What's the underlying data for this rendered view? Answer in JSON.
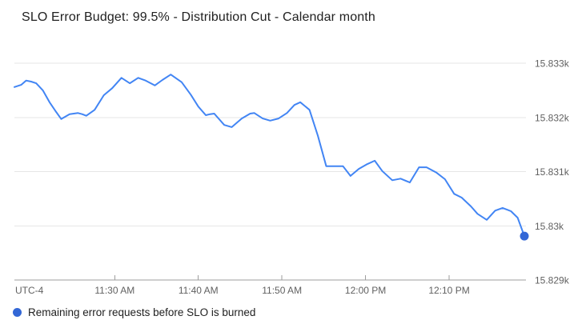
{
  "chart": {
    "title": "SLO Error Budget: 99.5% - Distribution Cut - Calendar month",
    "timezone_label": "UTC-4",
    "legend_items": [
      {
        "label": "Remaining error requests before SLO is burned",
        "color": "#3367d6"
      }
    ]
  },
  "colors": {
    "line": "#4285f4",
    "endpoint_dot": "#3367d6",
    "grid": "#e6e6e6",
    "axis": "#9e9e9e",
    "tick_text": "#616161",
    "title_text": "#212121"
  },
  "chart_data": {
    "type": "line",
    "title": "SLO Error Budget: 99.5% - Distribution Cut - Calendar month",
    "xlabel": "",
    "ylabel": "",
    "grid": true,
    "legend_position": "bottom-left",
    "x_axis_note": "UTC-4",
    "x_range_minutes": [
      678,
      739
    ],
    "x_ticks": [
      {
        "label": "11:30 AM",
        "t": 690
      },
      {
        "label": "11:40 AM",
        "t": 700
      },
      {
        "label": "11:50 AM",
        "t": 710
      },
      {
        "label": "12:00 PM",
        "t": 720
      },
      {
        "label": "12:10 PM",
        "t": 730
      }
    ],
    "y_ticks": [
      {
        "label": "15.833k",
        "value": 15833
      },
      {
        "label": "15.832k",
        "value": 15832
      },
      {
        "label": "15.831k",
        "value": 15831
      },
      {
        "label": "15.83k",
        "value": 15830
      },
      {
        "label": "15.829k",
        "value": 15829
      }
    ],
    "ylim": [
      15829,
      15833
    ],
    "series": [
      {
        "name": "Remaining error requests before SLO is burned",
        "color": "#4285f4",
        "endpoint_color": "#3367d6",
        "points": [
          [
            678.0,
            15832.56
          ],
          [
            678.8,
            15832.6
          ],
          [
            679.4,
            15832.68
          ],
          [
            680.0,
            15832.66
          ],
          [
            680.6,
            15832.63
          ],
          [
            681.4,
            15832.5
          ],
          [
            682.2,
            15832.28
          ],
          [
            683.0,
            15832.1
          ],
          [
            683.6,
            15831.97
          ],
          [
            684.6,
            15832.06
          ],
          [
            685.6,
            15832.08
          ],
          [
            686.1,
            15832.06
          ],
          [
            686.6,
            15832.03
          ],
          [
            687.6,
            15832.14
          ],
          [
            688.7,
            15832.41
          ],
          [
            689.7,
            15832.54
          ],
          [
            690.8,
            15832.73
          ],
          [
            691.8,
            15832.63
          ],
          [
            692.8,
            15832.73
          ],
          [
            693.7,
            15832.68
          ],
          [
            694.8,
            15832.59
          ],
          [
            695.7,
            15832.69
          ],
          [
            696.7,
            15832.79
          ],
          [
            698.0,
            15832.65
          ],
          [
            699.1,
            15832.42
          ],
          [
            700.0,
            15832.2
          ],
          [
            700.9,
            15832.04
          ],
          [
            701.4,
            15832.06
          ],
          [
            701.9,
            15832.07
          ],
          [
            703.1,
            15831.86
          ],
          [
            704.0,
            15831.82
          ],
          [
            705.2,
            15831.98
          ],
          [
            706.2,
            15832.07
          ],
          [
            706.7,
            15832.08
          ],
          [
            707.7,
            15831.98
          ],
          [
            708.6,
            15831.94
          ],
          [
            709.6,
            15831.98
          ],
          [
            710.6,
            15832.08
          ],
          [
            711.5,
            15832.23
          ],
          [
            712.2,
            15832.28
          ],
          [
            713.3,
            15832.14
          ],
          [
            714.3,
            15831.66
          ],
          [
            715.3,
            15831.1
          ],
          [
            716.3,
            15831.1
          ],
          [
            717.3,
            15831.1
          ],
          [
            718.2,
            15830.92
          ],
          [
            719.2,
            15831.05
          ],
          [
            720.1,
            15831.13
          ],
          [
            721.1,
            15831.2
          ],
          [
            722.0,
            15831.01
          ],
          [
            723.2,
            15830.84
          ],
          [
            724.2,
            15830.87
          ],
          [
            725.3,
            15830.8
          ],
          [
            726.4,
            15831.08
          ],
          [
            727.3,
            15831.08
          ],
          [
            728.5,
            15830.98
          ],
          [
            729.5,
            15830.86
          ],
          [
            730.6,
            15830.59
          ],
          [
            731.5,
            15830.52
          ],
          [
            732.6,
            15830.36
          ],
          [
            733.4,
            15830.22
          ],
          [
            734.5,
            15830.11
          ],
          [
            735.5,
            15830.28
          ],
          [
            736.4,
            15830.33
          ],
          [
            737.4,
            15830.27
          ],
          [
            738.2,
            15830.15
          ],
          [
            739.0,
            15829.81
          ]
        ]
      }
    ]
  }
}
